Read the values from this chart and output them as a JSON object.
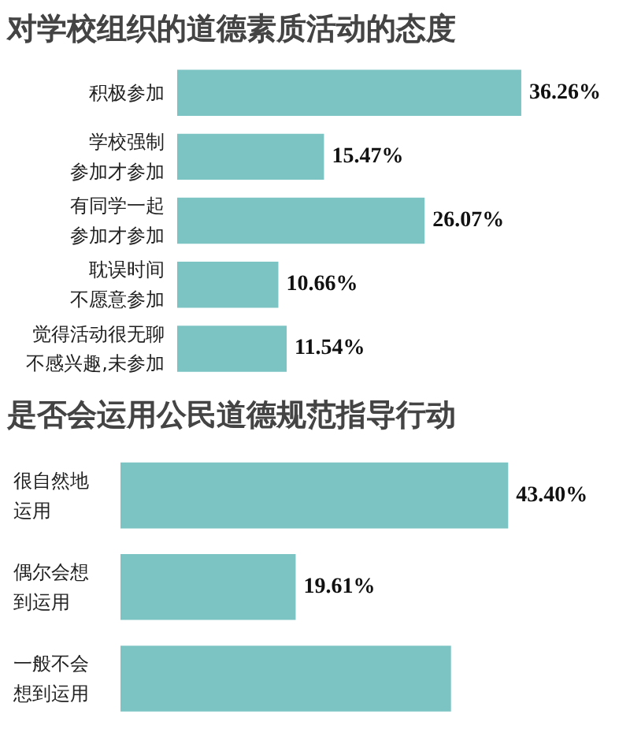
{
  "chart_data": [
    {
      "type": "bar",
      "orientation": "horizontal",
      "title": "对学校组织的道德素质活动的态度",
      "categories": [
        "积极参加",
        "学校强制参加才参加",
        "有同学一起参加才参加",
        "耽误时间不愿意参加",
        "觉得活动很无聊不感兴趣,未参加"
      ],
      "values": [
        36.26,
        15.47,
        26.07,
        10.66,
        11.54
      ],
      "value_labels": [
        "36.26%",
        "15.47%",
        "26.07%",
        "10.66%",
        "11.54%"
      ],
      "color": "#7cc4c4",
      "grid": false,
      "tick_labels": false
    },
    {
      "type": "bar",
      "orientation": "horizontal",
      "title": "是否会运用公民道德规范指导行动",
      "categories": [
        "很自然地运用",
        "偶尔会想到运用",
        "一般不会想到运用"
      ],
      "values": [
        43.4,
        19.61,
        37.0
      ],
      "value_labels": [
        "43.40%",
        "19.61%",
        null
      ],
      "color": "#7cc4c4",
      "grid": false,
      "tick_labels": false
    }
  ]
}
